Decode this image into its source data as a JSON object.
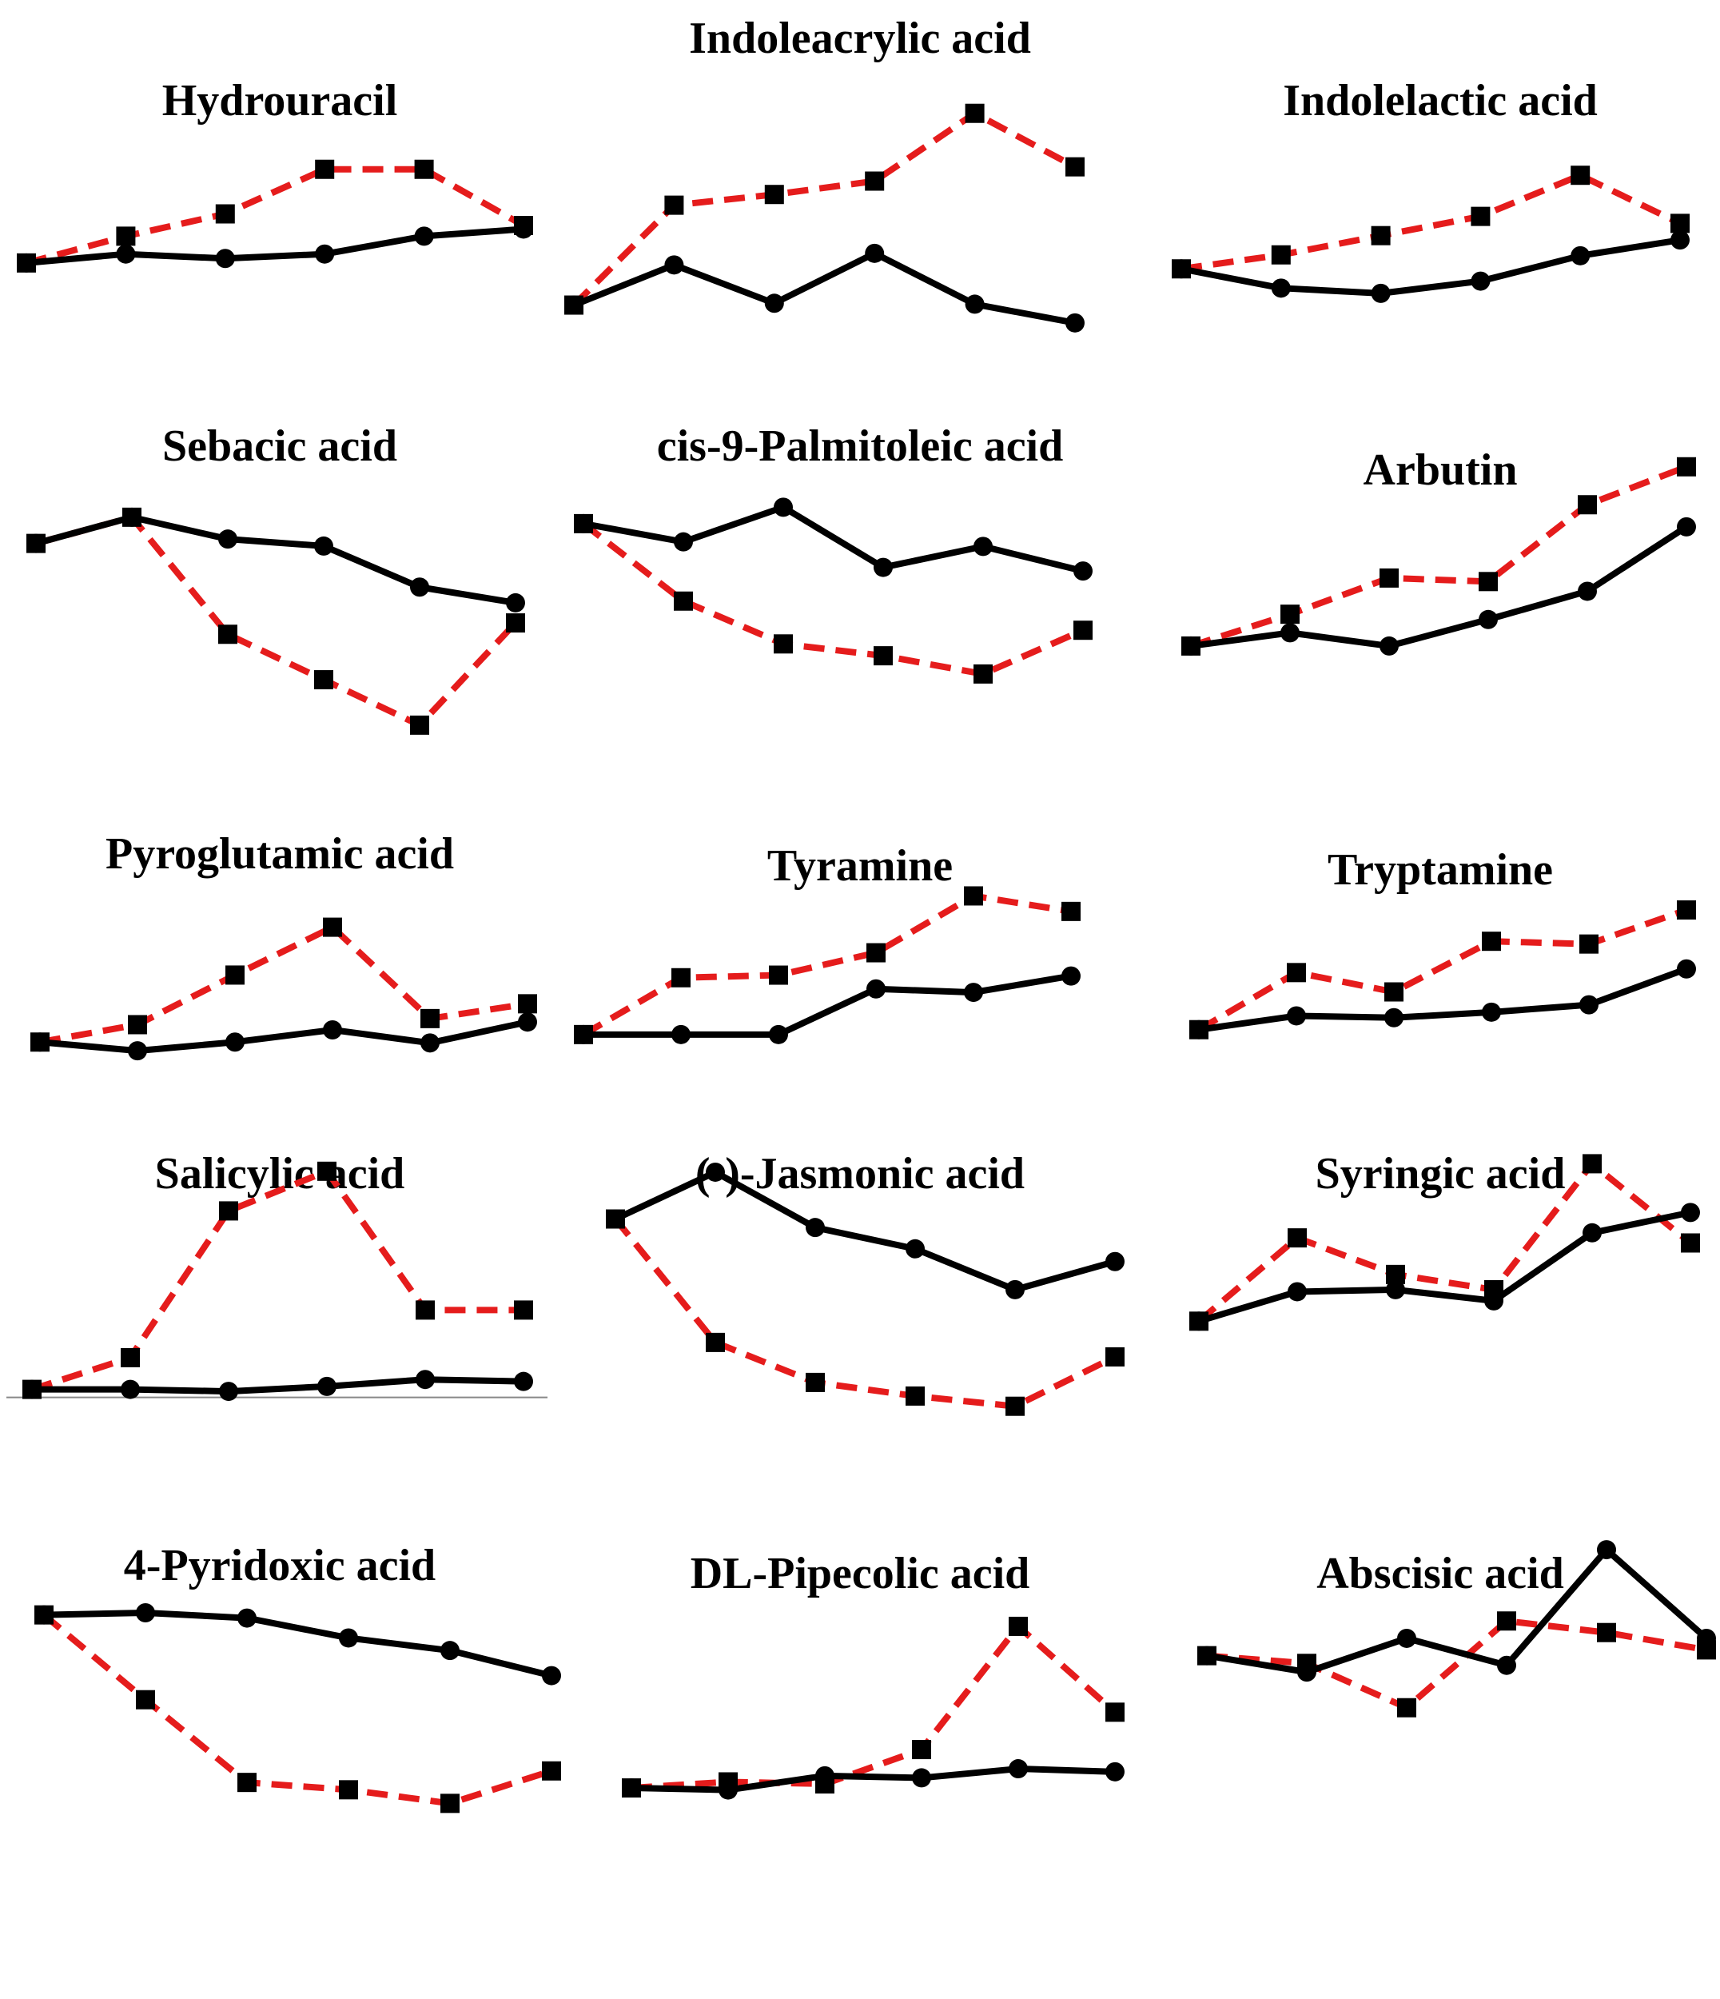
{
  "colors": {
    "black_series": "#000000",
    "red_series": "#e51c1c",
    "marker": "#000000"
  },
  "chart_data": [
    {
      "type": "line",
      "title": "Hydrouracil",
      "x": [
        1,
        2,
        3,
        4,
        5,
        6
      ],
      "series": [
        {
          "color": "black",
          "style": "solid",
          "marker": "circle",
          "values": [
            0.0,
            0.1,
            0.05,
            0.1,
            0.3,
            0.38
          ]
        },
        {
          "color": "red",
          "style": "dashed",
          "marker": "square",
          "values": [
            0.0,
            0.3,
            0.55,
            1.05,
            1.05,
            0.42
          ]
        }
      ],
      "ylim": [
        -0.1,
        1.2
      ]
    },
    {
      "type": "line",
      "title": "Indoleacrylic acid",
      "x": [
        1,
        2,
        3,
        4,
        5,
        6
      ],
      "series": [
        {
          "color": "black",
          "style": "solid",
          "marker": "circle",
          "values": [
            0.0,
            0.45,
            0.02,
            0.58,
            0.01,
            -0.2
          ]
        },
        {
          "color": "red",
          "style": "dashed",
          "marker": "square",
          "values": [
            0.0,
            1.12,
            1.24,
            1.39,
            2.15,
            1.55
          ]
        }
      ],
      "ylim": [
        -0.3,
        2.3
      ]
    },
    {
      "type": "line",
      "title": "Indolelactic acid",
      "x": [
        1,
        2,
        3,
        4,
        5,
        6
      ],
      "series": [
        {
          "color": "black",
          "style": "solid",
          "marker": "circle",
          "values": [
            0.0,
            -0.22,
            -0.28,
            -0.14,
            0.15,
            0.33
          ]
        },
        {
          "color": "red",
          "style": "dashed",
          "marker": "square",
          "values": [
            0.0,
            0.16,
            0.38,
            0.6,
            1.07,
            0.52
          ]
        }
      ],
      "ylim": [
        -0.4,
        1.2
      ]
    },
    {
      "type": "line",
      "title": "Sebacic acid",
      "x": [
        1,
        2,
        3,
        4,
        5,
        6
      ],
      "series": [
        {
          "color": "black",
          "style": "solid",
          "marker": "circle",
          "values": [
            0.0,
            0.3,
            0.05,
            -0.03,
            -0.5,
            -0.68
          ]
        },
        {
          "color": "red",
          "style": "dashed",
          "marker": "square",
          "values": [
            0.0,
            0.3,
            -1.04,
            -1.56,
            -2.08,
            -0.91
          ]
        }
      ],
      "ylim": [
        -2.2,
        0.5
      ]
    },
    {
      "type": "line",
      "title": "cis-9-Palmitoleic acid",
      "x": [
        1,
        2,
        3,
        4,
        5,
        6
      ],
      "series": [
        {
          "color": "black",
          "style": "solid",
          "marker": "circle",
          "values": [
            0.0,
            -0.2,
            0.18,
            -0.48,
            -0.25,
            -0.52
          ]
        },
        {
          "color": "red",
          "style": "dashed",
          "marker": "square",
          "values": [
            0.0,
            -0.85,
            -1.32,
            -1.45,
            -1.65,
            -1.17
          ]
        }
      ],
      "ylim": [
        -1.8,
        0.35
      ]
    },
    {
      "type": "line",
      "title": "Arbutin",
      "x": [
        1,
        2,
        3,
        4,
        5,
        6
      ],
      "series": [
        {
          "color": "black",
          "style": "solid",
          "marker": "circle",
          "values": [
            0.0,
            0.15,
            0.0,
            0.3,
            0.62,
            1.35
          ]
        },
        {
          "color": "red",
          "style": "dashed",
          "marker": "square",
          "values": [
            0.0,
            0.36,
            0.77,
            0.73,
            1.6,
            2.03
          ]
        }
      ],
      "ylim": [
        -0.2,
        2.2
      ]
    },
    {
      "type": "line",
      "title": "Pyroglutamic acid",
      "x": [
        1,
        2,
        3,
        4,
        5,
        6
      ],
      "series": [
        {
          "color": "black",
          "style": "solid",
          "marker": "circle",
          "values": [
            0.0,
            -0.1,
            0.0,
            0.14,
            -0.01,
            0.23
          ]
        },
        {
          "color": "red",
          "style": "dashed",
          "marker": "square",
          "values": [
            0.0,
            0.2,
            0.77,
            1.32,
            0.27,
            0.44
          ]
        }
      ],
      "ylim": [
        -0.2,
        1.5
      ]
    },
    {
      "type": "line",
      "title": "Tyramine",
      "x": [
        1,
        2,
        3,
        4,
        5,
        6
      ],
      "series": [
        {
          "color": "black",
          "style": "solid",
          "marker": "circle",
          "values": [
            0.0,
            0.0,
            0.0,
            0.53,
            0.49,
            0.68
          ]
        },
        {
          "color": "red",
          "style": "dashed",
          "marker": "square",
          "values": [
            0.0,
            0.66,
            0.69,
            0.95,
            1.61,
            1.43
          ]
        }
      ],
      "ylim": [
        -0.15,
        1.8
      ]
    },
    {
      "type": "line",
      "title": "Tryptamine",
      "x": [
        1,
        2,
        3,
        4,
        5,
        6
      ],
      "series": [
        {
          "color": "black",
          "style": "solid",
          "marker": "circle",
          "values": [
            0.0,
            0.15,
            0.13,
            0.19,
            0.27,
            0.66
          ]
        },
        {
          "color": "red",
          "style": "dashed",
          "marker": "square",
          "values": [
            0.0,
            0.62,
            0.41,
            0.96,
            0.93,
            1.3
          ]
        }
      ],
      "ylim": [
        -0.15,
        1.5
      ]
    },
    {
      "type": "line",
      "title": "Salicylic acid",
      "x": [
        1,
        2,
        3,
        4,
        5,
        6
      ],
      "series": [
        {
          "color": "black",
          "style": "solid",
          "marker": "circle",
          "values": [
            0.0,
            0.0,
            -0.02,
            0.03,
            0.1,
            0.08
          ]
        },
        {
          "color": "red",
          "style": "dashed",
          "marker": "square",
          "values": [
            0.0,
            0.32,
            1.8,
            2.2,
            0.8,
            0.8
          ]
        }
      ],
      "ylim": [
        -0.1,
        2.4
      ]
    },
    {
      "type": "line",
      "title": "(-)-Jasmonic acid",
      "x": [
        1,
        2,
        3,
        4,
        5,
        6
      ],
      "series": [
        {
          "color": "black",
          "style": "solid",
          "marker": "circle",
          "values": [
            0.0,
            0.55,
            -0.1,
            -0.35,
            -0.83,
            -0.5
          ]
        },
        {
          "color": "red",
          "style": "dashed",
          "marker": "square",
          "values": [
            0.0,
            -1.45,
            -1.92,
            -2.08,
            -2.2,
            -1.62
          ]
        }
      ],
      "ylim": [
        -2.4,
        0.7
      ]
    },
    {
      "type": "line",
      "title": "Syringic acid",
      "x": [
        1,
        2,
        3,
        4,
        5,
        6
      ],
      "series": [
        {
          "color": "black",
          "style": "solid",
          "marker": "circle",
          "values": [
            0.0,
            0.29,
            0.31,
            0.2,
            0.87,
            1.07
          ]
        },
        {
          "color": "red",
          "style": "dashed",
          "marker": "square",
          "values": [
            0.0,
            0.82,
            0.46,
            0.31,
            1.55,
            0.77
          ]
        }
      ],
      "ylim": [
        -0.1,
        1.75
      ]
    },
    {
      "type": "line",
      "title": "4-Pyridoxic acid",
      "x": [
        1,
        2,
        3,
        4,
        5,
        6
      ],
      "series": [
        {
          "color": "black",
          "style": "solid",
          "marker": "circle",
          "values": [
            0.0,
            0.02,
            -0.03,
            -0.22,
            -0.34,
            -0.58
          ]
        },
        {
          "color": "red",
          "style": "dashed",
          "marker": "square",
          "values": [
            0.0,
            -0.81,
            -1.6,
            -1.67,
            -1.8,
            -1.49
          ]
        }
      ],
      "ylim": [
        -1.95,
        0.15
      ]
    },
    {
      "type": "line",
      "title": "DL-Pipecolic acid",
      "x": [
        1,
        2,
        3,
        4,
        5,
        6
      ],
      "series": [
        {
          "color": "black",
          "style": "solid",
          "marker": "circle",
          "values": [
            0.0,
            -0.02,
            0.12,
            0.1,
            0.19,
            0.16
          ]
        },
        {
          "color": "red",
          "style": "dashed",
          "marker": "square",
          "values": [
            0.0,
            0.06,
            0.04,
            0.38,
            1.6,
            0.75
          ]
        }
      ],
      "ylim": [
        -0.15,
        1.75
      ]
    },
    {
      "type": "line",
      "title": "Abscisic acid",
      "x": [
        1,
        2,
        3,
        4,
        5,
        6
      ],
      "series": [
        {
          "color": "black",
          "style": "solid",
          "marker": "circle",
          "values": [
            0.0,
            -0.17,
            0.18,
            -0.1,
            1.1,
            0.18
          ]
        },
        {
          "color": "red",
          "style": "dashed",
          "marker": "square",
          "values": [
            0.0,
            -0.08,
            -0.54,
            0.36,
            0.24,
            0.06
          ]
        }
      ],
      "ylim": [
        -0.7,
        1.25
      ]
    }
  ]
}
